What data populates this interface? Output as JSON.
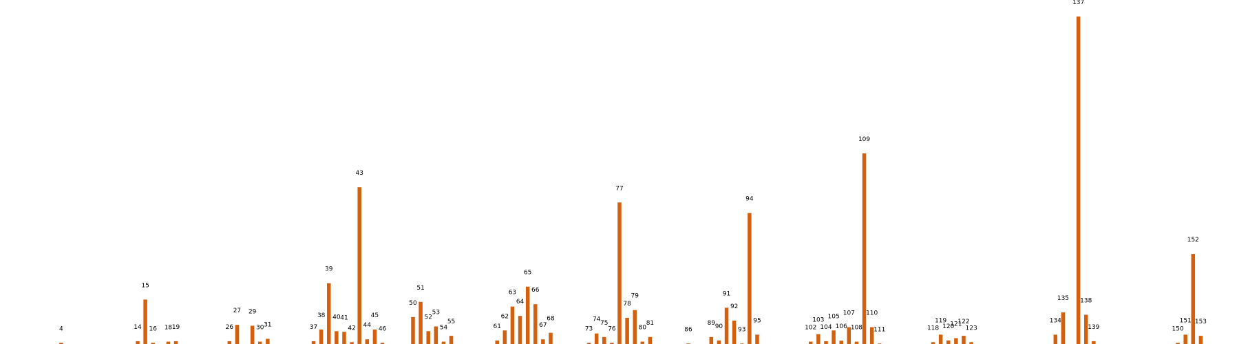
{
  "chart_data": {
    "type": "bar",
    "title": "",
    "xlabel": "",
    "ylabel": "",
    "bar_color": "#d2600e",
    "grid": false,
    "legend": "none",
    "xlim": [
      -4,
      158
    ],
    "ylim": [
      0,
      14
    ],
    "x": [
      4,
      14,
      15,
      16,
      18,
      19,
      26,
      27,
      29,
      30,
      31,
      37,
      38,
      39,
      40,
      41,
      42,
      43,
      44,
      45,
      46,
      50,
      51,
      52,
      53,
      54,
      55,
      61,
      62,
      63,
      64,
      65,
      66,
      67,
      68,
      73,
      74,
      75,
      76,
      77,
      78,
      79,
      80,
      81,
      86,
      89,
      90,
      91,
      92,
      93,
      94,
      95,
      102,
      103,
      104,
      105,
      106,
      107,
      108,
      109,
      110,
      111,
      118,
      119,
      120,
      121,
      122,
      123,
      134,
      135,
      137,
      138,
      139,
      150,
      151,
      152,
      153
    ],
    "labels": [
      "4",
      "14",
      "15",
      "16",
      "18",
      "19",
      "26",
      "27",
      "29",
      "30",
      "31",
      "37",
      "38",
      "39",
      "40",
      "41",
      "42",
      "43",
      "44",
      "45",
      "46",
      "50",
      "51",
      "52",
      "53",
      "54",
      "55",
      "61",
      "62",
      "63",
      "64",
      "65",
      "66",
      "67",
      "68",
      "73",
      "74",
      "75",
      "76",
      "77",
      "78",
      "79",
      "80",
      "81",
      "86",
      "89",
      "90",
      "91",
      "92",
      "93",
      "94",
      "95",
      "102",
      "103",
      "104",
      "105",
      "106",
      "107",
      "108",
      "109",
      "110",
      "111",
      "118",
      "119",
      "120",
      "121",
      "122",
      "123",
      "134",
      "135",
      "137",
      "138",
      "139",
      "150",
      "151",
      "152",
      "153"
    ],
    "values": [
      0.05,
      0.12,
      1.9,
      0.05,
      0.1,
      0.12,
      0.12,
      0.82,
      0.78,
      0.1,
      0.22,
      0.12,
      0.62,
      2.6,
      0.55,
      0.52,
      0.08,
      6.7,
      0.2,
      0.62,
      0.05,
      1.15,
      1.8,
      0.55,
      0.75,
      0.1,
      0.35,
      0.15,
      0.58,
      1.6,
      1.2,
      2.45,
      1.7,
      0.2,
      0.48,
      0.05,
      0.45,
      0.3,
      0.05,
      6.05,
      1.12,
      1.45,
      0.1,
      0.3,
      0.02,
      0.3,
      0.15,
      1.55,
      1.0,
      0.02,
      5.6,
      0.4,
      0.1,
      0.42,
      0.12,
      0.58,
      0.14,
      0.72,
      0.1,
      8.15,
      0.72,
      0.02,
      0.08,
      0.4,
      0.15,
      0.25,
      0.35,
      0.08,
      0.4,
      1.35,
      14.0,
      1.25,
      0.12,
      0.05,
      0.4,
      3.85,
      0.35
    ]
  }
}
